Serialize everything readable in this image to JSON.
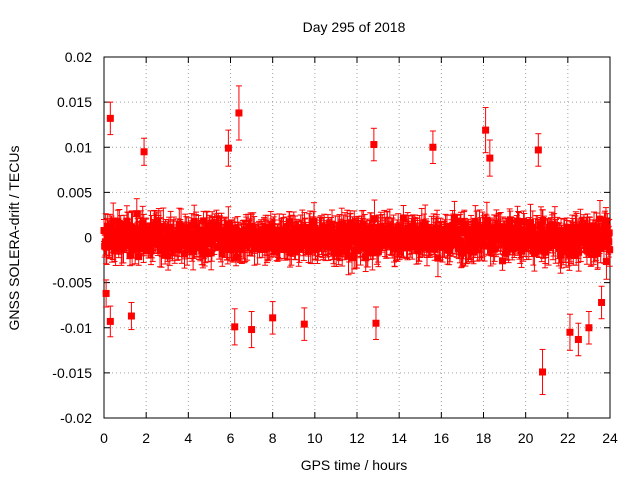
{
  "chart_data": {
    "type": "scatter",
    "title": "Day 295 of 2018",
    "xlabel": "GPS time / hours",
    "ylabel": "GNSS SOLERA-drift / TECUs",
    "xlim": [
      0,
      24
    ],
    "ylim": [
      -0.02,
      0.02
    ],
    "x_ticks": [
      "0",
      "2",
      "4",
      "6",
      "8",
      "10",
      "12",
      "14",
      "16",
      "18",
      "20",
      "22",
      "24"
    ],
    "y_ticks": [
      "0.02",
      "0.015",
      "0.01",
      "0.005",
      "0",
      "-0.005",
      "-0.01",
      "-0.015",
      "-0.02"
    ],
    "grid": true,
    "marker": "square",
    "color": "#ff0000",
    "series": [
      {
        "name": "SOLERA drift",
        "points": [
          {
            "x": 0.3,
            "y": 0.0132,
            "err": 0.0018
          },
          {
            "x": 0.3,
            "y": -0.0093,
            "err": 0.0017
          },
          {
            "x": 0.1,
            "y": -0.0062,
            "err": 0.0015
          },
          {
            "x": 1.9,
            "y": 0.0095,
            "err": 0.0015
          },
          {
            "x": 1.3,
            "y": -0.0087,
            "err": 0.0015
          },
          {
            "x": 6.4,
            "y": 0.0138,
            "err": 0.003
          },
          {
            "x": 5.9,
            "y": 0.0099,
            "err": 0.002
          },
          {
            "x": 6.2,
            "y": -0.0099,
            "err": 0.002
          },
          {
            "x": 7.0,
            "y": -0.0102,
            "err": 0.002
          },
          {
            "x": 8.0,
            "y": -0.0089,
            "err": 0.0018
          },
          {
            "x": 9.5,
            "y": -0.0096,
            "err": 0.0018
          },
          {
            "x": 12.8,
            "y": 0.0103,
            "err": 0.0018
          },
          {
            "x": 12.9,
            "y": -0.0095,
            "err": 0.0018
          },
          {
            "x": 15.6,
            "y": 0.01,
            "err": 0.0018
          },
          {
            "x": 18.1,
            "y": 0.0119,
            "err": 0.0025
          },
          {
            "x": 18.3,
            "y": 0.0088,
            "err": 0.002
          },
          {
            "x": 20.8,
            "y": -0.0149,
            "err": 0.0025
          },
          {
            "x": 20.6,
            "y": 0.0097,
            "err": 0.0018
          },
          {
            "x": 22.1,
            "y": -0.0105,
            "err": 0.002
          },
          {
            "x": 22.5,
            "y": -0.0113,
            "err": 0.0018
          },
          {
            "x": 23.6,
            "y": -0.0072,
            "err": 0.0018
          },
          {
            "x": 23.0,
            "y": -0.01,
            "err": 0.0018
          }
        ]
      }
    ]
  }
}
